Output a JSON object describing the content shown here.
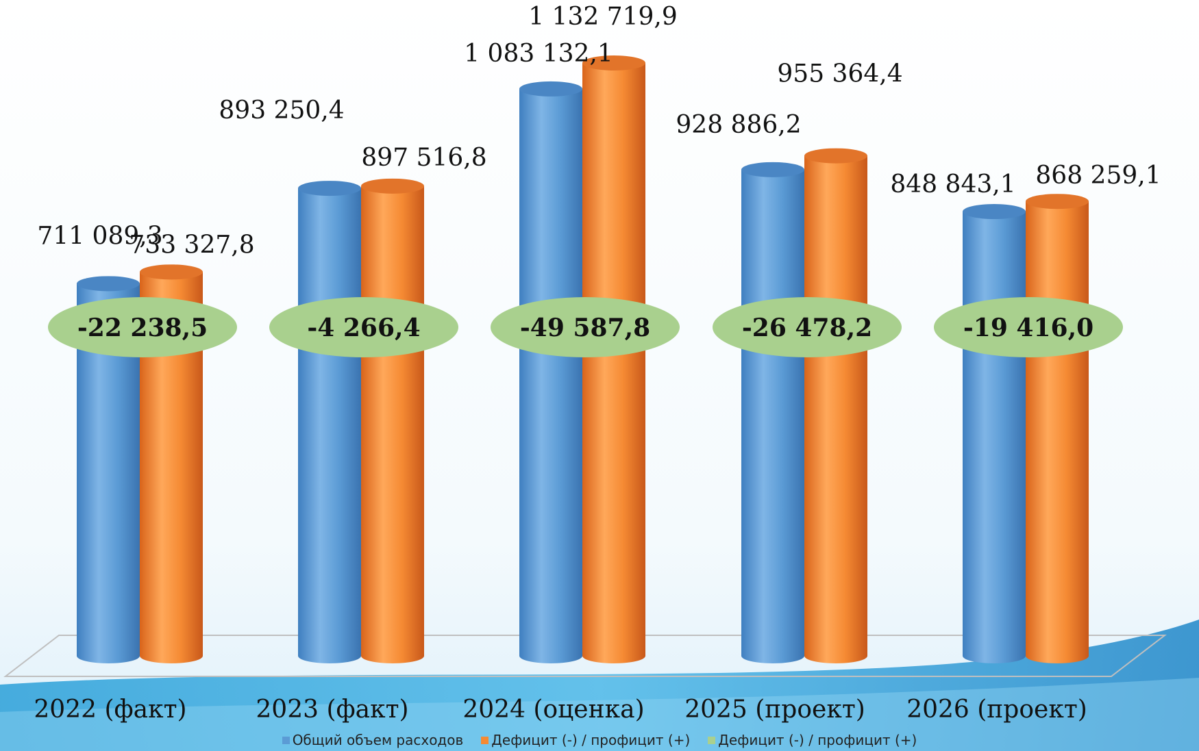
{
  "chart_data": {
    "type": "bar",
    "title": "",
    "xlabel": "",
    "ylabel": "",
    "ylim": [
      0,
      1200000
    ],
    "categories": [
      "2022 (факт)",
      "2023 (факт)",
      "2024 (оценка)",
      "2025 (проект)",
      "2026 (проект)"
    ],
    "series": [
      {
        "name": "Общий объем расходов",
        "color": "#5b9bd5",
        "values": [
          711089.3,
          893250.4,
          1083132.1,
          928886.2,
          848843.1
        ],
        "labels": [
          "711 089,3",
          "893 250,4",
          "1 083 132,1",
          "928 886,2",
          "848 843,1"
        ]
      },
      {
        "name": "Дефицит (-) / профицит (+)",
        "color": "#f58a33",
        "values": [
          733327.8,
          897516.8,
          1132719.9,
          955364.4,
          868259.1
        ],
        "labels": [
          "733 327,8",
          "897 516,8",
          "1 132 719,9",
          "955 364,4",
          "868 259,1"
        ]
      },
      {
        "name": "Дефицит (-) / профицит (+)",
        "color": "#a9d08e",
        "values": [
          -22238.5,
          -4266.4,
          -49587.8,
          -26478.2,
          -19416.0
        ],
        "labels": [
          "-22 238,5",
          "-4 266,4",
          "-49 587,8",
          "-26 478,2",
          "-19 416,0"
        ]
      }
    ],
    "legend_position": "bottom",
    "grid": false
  }
}
